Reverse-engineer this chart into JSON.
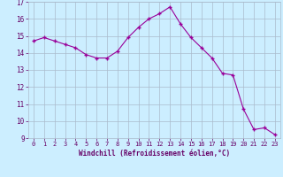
{
  "x": [
    0,
    1,
    2,
    3,
    4,
    5,
    6,
    7,
    8,
    9,
    10,
    11,
    12,
    13,
    14,
    15,
    16,
    17,
    18,
    19,
    20,
    21,
    22,
    23
  ],
  "y": [
    14.7,
    14.9,
    14.7,
    14.5,
    14.3,
    13.9,
    13.7,
    13.7,
    14.1,
    14.9,
    15.5,
    16.0,
    16.3,
    16.7,
    15.7,
    14.9,
    14.3,
    13.7,
    12.8,
    12.7,
    10.7,
    9.5,
    9.6,
    9.2
  ],
  "line_color": "#990099",
  "marker": "+",
  "marker_size": 3,
  "background_color": "#cceeff",
  "grid_color": "#aabbcc",
  "xlabel": "Windchill (Refroidissement éolien,°C)",
  "xlabel_color": "#660066",
  "tick_color": "#660066",
  "ylim": [
    9,
    17
  ],
  "xlim": [
    -0.5,
    23.5
  ],
  "yticks": [
    9,
    10,
    11,
    12,
    13,
    14,
    15,
    16,
    17
  ],
  "xticks": [
    0,
    1,
    2,
    3,
    4,
    5,
    6,
    7,
    8,
    9,
    10,
    11,
    12,
    13,
    14,
    15,
    16,
    17,
    18,
    19,
    20,
    21,
    22,
    23
  ]
}
